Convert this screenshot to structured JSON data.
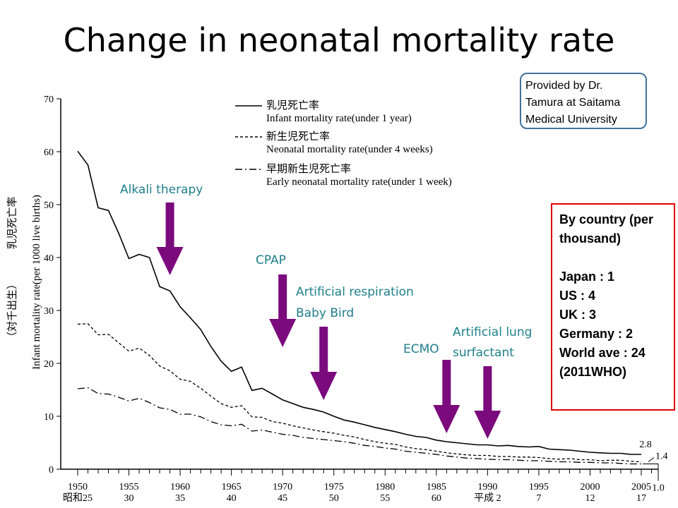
{
  "title": "Change in neonatal mortality rate",
  "credit": [
    "Provided by Dr.",
    "Tamura at Saitama",
    "Medical University"
  ],
  "country_box": {
    "heading": [
      "By country (per",
      "thousand)"
    ],
    "rows": [
      "Japan : 1",
      "US : 4",
      "UK : 3",
      "Germany : 2",
      "World ave : 24",
      "(2011WHO)"
    ]
  },
  "colors": {
    "arrow": "#7b0a7d",
    "annotation_text": "#1f7f8a",
    "credit_border": "#41719c",
    "country_border": "#e00000"
  },
  "annotations": [
    {
      "text": "Alkali therapy",
      "arrow_year": 1959
    },
    {
      "text": "CPAP",
      "arrow_year": 1970
    },
    {
      "text": "Artificial respiration",
      "text2": "Baby Bird",
      "arrow_year": 1974
    },
    {
      "text": "ECMO",
      "arrow_year": 1986
    },
    {
      "text": "Artificial lung",
      "text2": "surfactant",
      "arrow_year": 1990
    }
  ],
  "chart_data": {
    "type": "line",
    "ylabel_en": "Infant mortality rate(per 1000 live births)",
    "ylabel_jp": "乳児死亡率",
    "ylabel_jp2": "（対千出生）",
    "ylim": [
      0,
      70
    ],
    "yticks": [
      0,
      10,
      20,
      30,
      40,
      50,
      60,
      70
    ],
    "xlim": [
      1949,
      2006
    ],
    "xticks": [
      {
        "year": 1950,
        "top": "1950",
        "bottom": "昭和25"
      },
      {
        "year": 1955,
        "top": "1955",
        "bottom": "30"
      },
      {
        "year": 1960,
        "top": "1960",
        "bottom": "35"
      },
      {
        "year": 1965,
        "top": "1965",
        "bottom": "40"
      },
      {
        "year": 1970,
        "top": "1970",
        "bottom": "45"
      },
      {
        "year": 1975,
        "top": "1975",
        "bottom": "50"
      },
      {
        "year": 1980,
        "top": "1980",
        "bottom": "55"
      },
      {
        "year": 1985,
        "top": "1985",
        "bottom": "60"
      },
      {
        "year": 1990,
        "top": "1990",
        "bottom": "平成 2"
      },
      {
        "year": 1995,
        "top": "1995",
        "bottom": "7"
      },
      {
        "year": 2000,
        "top": "2000",
        "bottom": "12"
      },
      {
        "year": 2005,
        "top": "2005",
        "bottom": "17"
      }
    ],
    "series": [
      {
        "name_jp": "乳児死亡率",
        "name": "Infant mortality rate(under 1 year)",
        "style": "solid",
        "x": [
          1950,
          1951,
          1952,
          1953,
          1954,
          1955,
          1956,
          1957,
          1958,
          1959,
          1960,
          1961,
          1962,
          1963,
          1964,
          1965,
          1966,
          1967,
          1968,
          1969,
          1970,
          1971,
          1972,
          1973,
          1974,
          1975,
          1976,
          1977,
          1978,
          1979,
          1980,
          1981,
          1982,
          1983,
          1984,
          1985,
          1986,
          1987,
          1988,
          1989,
          1990,
          1991,
          1992,
          1993,
          1994,
          1995,
          1996,
          1997,
          1998,
          1999,
          2000,
          2001,
          2002,
          2003,
          2004,
          2005
        ],
        "y": [
          60.1,
          57.5,
          49.4,
          48.9,
          44.6,
          39.8,
          40.6,
          40.0,
          34.5,
          33.7,
          30.7,
          28.6,
          26.4,
          23.2,
          20.4,
          18.5,
          19.3,
          14.9,
          15.3,
          14.2,
          13.1,
          12.4,
          11.7,
          11.3,
          10.8,
          10.0,
          9.3,
          8.9,
          8.4,
          7.9,
          7.5,
          7.1,
          6.6,
          6.2,
          6.0,
          5.5,
          5.2,
          5.0,
          4.8,
          4.6,
          4.6,
          4.4,
          4.5,
          4.3,
          4.2,
          4.3,
          3.8,
          3.7,
          3.6,
          3.4,
          3.2,
          3.1,
          3.0,
          3.0,
          2.8,
          2.8
        ],
        "end_label": "2.8"
      },
      {
        "name_jp": "新生児死亡率",
        "name": "Neonatal mortality rate(under 4 weeks)",
        "style": "dashed",
        "x": [
          1950,
          1951,
          1952,
          1953,
          1954,
          1955,
          1956,
          1957,
          1958,
          1959,
          1960,
          1961,
          1962,
          1963,
          1964,
          1965,
          1966,
          1967,
          1968,
          1969,
          1970,
          1971,
          1972,
          1973,
          1974,
          1975,
          1976,
          1977,
          1978,
          1979,
          1980,
          1981,
          1982,
          1983,
          1984,
          1985,
          1986,
          1987,
          1988,
          1989,
          1990,
          1991,
          1992,
          1993,
          1994,
          1995,
          1996,
          1997,
          1998,
          1999,
          2000,
          2001,
          2002,
          2003,
          2004,
          2005
        ],
        "y": [
          27.4,
          27.5,
          25.4,
          25.5,
          23.9,
          22.3,
          22.9,
          21.5,
          19.5,
          18.6,
          17.0,
          16.6,
          15.3,
          13.8,
          12.4,
          11.7,
          12.0,
          9.9,
          9.8,
          9.0,
          8.7,
          8.2,
          7.8,
          7.4,
          7.1,
          6.8,
          6.4,
          6.1,
          5.6,
          5.2,
          4.9,
          4.7,
          4.2,
          3.9,
          3.7,
          3.4,
          3.1,
          2.9,
          2.7,
          2.6,
          2.6,
          2.4,
          2.4,
          2.3,
          2.3,
          2.2,
          2.0,
          1.9,
          2.0,
          1.8,
          1.8,
          1.6,
          1.7,
          1.7,
          1.5,
          1.4
        ],
        "end_label": "1.4"
      },
      {
        "name_jp": "早期新生児死亡率",
        "name": "Early neonatal mortality rate(under 1 week)",
        "style": "dashdot",
        "x": [
          1950,
          1951,
          1952,
          1953,
          1954,
          1955,
          1956,
          1957,
          1958,
          1959,
          1960,
          1961,
          1962,
          1963,
          1964,
          1965,
          1966,
          1967,
          1968,
          1969,
          1970,
          1971,
          1972,
          1973,
          1974,
          1975,
          1976,
          1977,
          1978,
          1979,
          1980,
          1981,
          1982,
          1983,
          1984,
          1985,
          1986,
          1987,
          1988,
          1989,
          1990,
          1991,
          1992,
          1993,
          1994,
          1995,
          1996,
          1997,
          1998,
          1999,
          2000,
          2001,
          2002,
          2003,
          2004,
          2005
        ],
        "y": [
          15.2,
          15.4,
          14.3,
          14.2,
          13.6,
          12.9,
          13.4,
          12.6,
          11.6,
          11.3,
          10.4,
          10.4,
          9.9,
          9.0,
          8.4,
          8.2,
          8.5,
          7.2,
          7.4,
          7.0,
          6.6,
          6.4,
          6.0,
          5.8,
          5.6,
          5.4,
          5.2,
          4.9,
          4.5,
          4.3,
          4.0,
          3.8,
          3.4,
          3.2,
          3.0,
          2.8,
          2.5,
          2.3,
          2.1,
          2.0,
          1.9,
          1.8,
          1.8,
          1.7,
          1.6,
          1.6,
          1.5,
          1.4,
          1.4,
          1.3,
          1.3,
          1.2,
          1.2,
          1.1,
          1.0,
          1.0
        ],
        "end_label": "1.0"
      }
    ]
  }
}
